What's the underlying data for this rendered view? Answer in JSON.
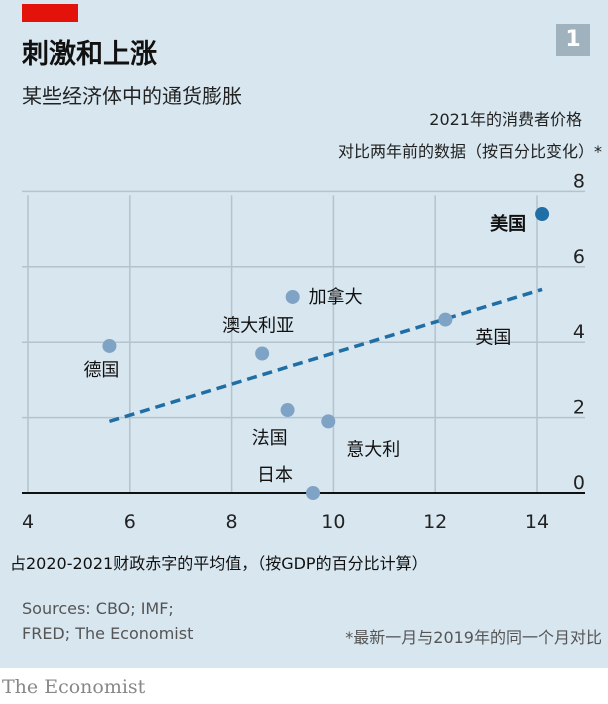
{
  "header": {
    "title": "刺激和上涨",
    "subtitle": "某些经济体中的通货膨胀",
    "badge": "1"
  },
  "chart_data": {
    "type": "scatter",
    "title": "刺激和上涨",
    "subtitle": "某些经济体中的通货膨胀",
    "ylabel": [
      "2021年的消费者价格",
      "对比两年前的数据（按百分比变化）*"
    ],
    "xlabel": "占2020-2021财政赤字的平均值，（按GDP的百分比计算）",
    "xlim": [
      4,
      15
    ],
    "ylim": [
      0,
      8
    ],
    "xticks": [
      4,
      6,
      8,
      10,
      12,
      14
    ],
    "yticks": [
      0,
      2,
      4,
      6,
      8
    ],
    "grid": true,
    "points": [
      {
        "label": "德国",
        "x": 5.6,
        "y": 3.9
      },
      {
        "label": "澳大利亚",
        "x": 8.6,
        "y": 3.7
      },
      {
        "label": "加拿大",
        "x": 9.2,
        "y": 5.2
      },
      {
        "label": "法国",
        "x": 9.1,
        "y": 2.2
      },
      {
        "label": "意大利",
        "x": 9.9,
        "y": 1.9
      },
      {
        "label": "日本",
        "x": 9.6,
        "y": 0.0
      },
      {
        "label": "英国",
        "x": 12.2,
        "y": 4.6
      },
      {
        "label": "美国",
        "x": 14.1,
        "y": 7.4,
        "highlight": true
      }
    ],
    "trendline": {
      "x": [
        5.6,
        14.1
      ],
      "y": [
        1.9,
        5.4
      ]
    },
    "colors": {
      "point": "#7fa3c4",
      "highlight": "#1f6ea5",
      "trend": "#1f6ea5",
      "background": "#d7e6ef"
    }
  },
  "footer": {
    "sources": [
      "Sources: CBO; IMF;",
      "FRED; The Economist"
    ],
    "note": "*最新一月与2019年的同一个月对比",
    "logo": "The Economist"
  }
}
